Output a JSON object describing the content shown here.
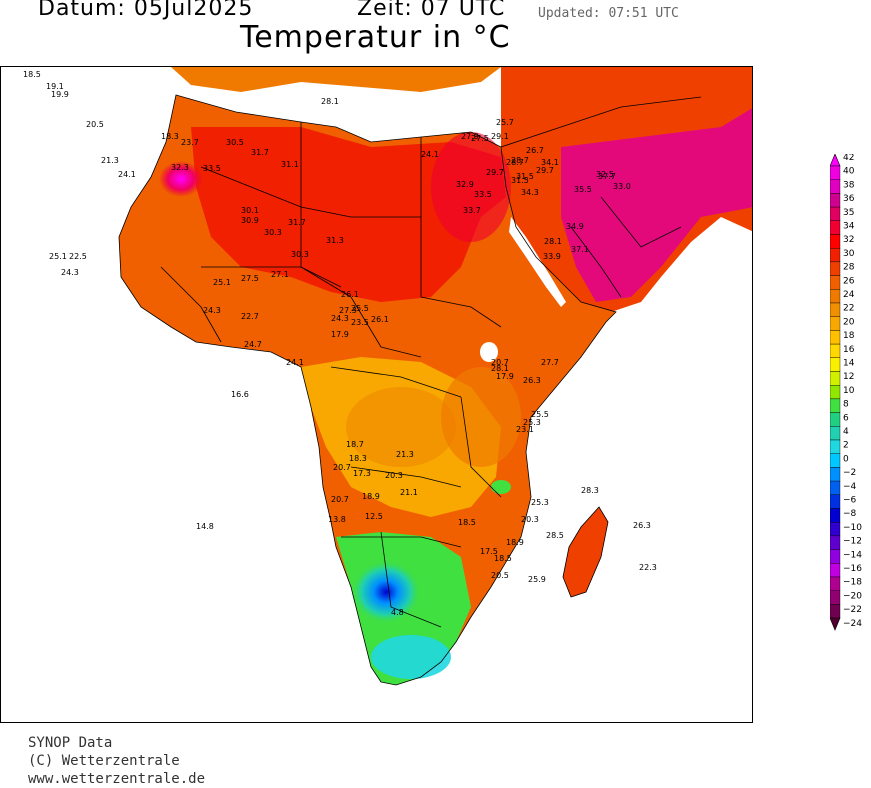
{
  "header": {
    "datum_label": "Datum: 05Jul2025",
    "zeit_label": "Zeit: 07 UTC",
    "updated": "Updated: 07:51 UTC",
    "title": "Temperatur in °C"
  },
  "credits": {
    "line1": "SYNOP Data",
    "line2": "(C) Wetterzentrale",
    "line3": "www.wetterzentrale.de"
  },
  "colorbar": {
    "labels": [
      "42",
      "40",
      "38",
      "36",
      "35",
      "34",
      "32",
      "30",
      "28",
      "26",
      "24",
      "22",
      "20",
      "18",
      "16",
      "14",
      "12",
      "10",
      "8",
      "6",
      "4",
      "2",
      "0",
      "−2",
      "−4",
      "−6",
      "−8",
      "−10",
      "−12",
      "−14",
      "−16",
      "−18",
      "−20",
      "−22",
      "−24"
    ],
    "colors": [
      "#ff00ff",
      "#f000e0",
      "#e000c0",
      "#d00090",
      "#e00060",
      "#f00030",
      "#ff0000",
      "#f02000",
      "#f04000",
      "#f06000",
      "#f07a00",
      "#f09000",
      "#f8a800",
      "#ffc000",
      "#ffd800",
      "#f8f000",
      "#d0f000",
      "#90e800",
      "#40e040",
      "#20d080",
      "#20d0b0",
      "#20d8e0",
      "#00c8ff",
      "#0090ff",
      "#0060f0",
      "#0030e0",
      "#0000d0",
      "#3000d0",
      "#6000d0",
      "#9000e0",
      "#c000e0",
      "#b00090",
      "#900070",
      "#700050",
      "#500030"
    ]
  },
  "stations": [
    {
      "t": "18.5"
    },
    {
      "t": "19.1"
    },
    {
      "t": "19.9"
    },
    {
      "t": "20.5"
    },
    {
      "t": "18.3"
    },
    {
      "t": "23.7"
    },
    {
      "t": "21.3"
    },
    {
      "t": "24.1"
    },
    {
      "t": "32.3"
    },
    {
      "t": "25.1"
    },
    {
      "t": "22.5"
    },
    {
      "t": "24.3"
    },
    {
      "t": "30.5"
    },
    {
      "t": "31.7"
    },
    {
      "t": "31.1"
    },
    {
      "t": "33.5"
    },
    {
      "t": "30.1"
    },
    {
      "t": "30.9"
    },
    {
      "t": "30.3"
    },
    {
      "t": "31.7"
    },
    {
      "t": "30.3"
    },
    {
      "t": "31.3"
    },
    {
      "t": "28.1"
    },
    {
      "t": "27.9"
    },
    {
      "t": "26.7"
    },
    {
      "t": "24.1"
    },
    {
      "t": "27.5"
    },
    {
      "t": "28.7"
    },
    {
      "t": "29.7"
    },
    {
      "t": "32.9"
    },
    {
      "t": "33.7"
    },
    {
      "t": "33.5"
    },
    {
      "t": "31.5"
    },
    {
      "t": "34.3"
    },
    {
      "t": "29.7"
    },
    {
      "t": "34.9"
    },
    {
      "t": "28.1"
    },
    {
      "t": "33.9"
    },
    {
      "t": "37.1"
    },
    {
      "t": "34.1"
    },
    {
      "t": "37.7"
    },
    {
      "t": "35.5"
    },
    {
      "t": "32.5"
    },
    {
      "t": "33.0"
    },
    {
      "t": "27.1"
    },
    {
      "t": "27.5"
    },
    {
      "t": "25.1"
    },
    {
      "t": "24.3"
    },
    {
      "t": "22.7"
    },
    {
      "t": "24.7"
    },
    {
      "t": "26.1"
    },
    {
      "t": "27.3"
    },
    {
      "t": "24.3"
    },
    {
      "t": "25.5"
    },
    {
      "t": "17.9"
    },
    {
      "t": "23.5"
    },
    {
      "t": "26.1"
    },
    {
      "t": "24.1"
    },
    {
      "t": "16.6"
    },
    {
      "t": "28.1"
    },
    {
      "t": "17.9"
    },
    {
      "t": "26.3"
    },
    {
      "t": "20.7"
    },
    {
      "t": "27.7"
    },
    {
      "t": "25.5"
    },
    {
      "t": "25.3"
    },
    {
      "t": "23.1"
    },
    {
      "t": "18.7"
    },
    {
      "t": "18.3"
    },
    {
      "t": "21.3"
    },
    {
      "t": "20.7"
    },
    {
      "t": "17.3"
    },
    {
      "t": "20.3"
    },
    {
      "t": "21.1"
    },
    {
      "t": "20.7"
    },
    {
      "t": "18.9"
    },
    {
      "t": "12.5"
    },
    {
      "t": "13.8"
    },
    {
      "t": "14.8"
    },
    {
      "t": "25.3"
    },
    {
      "t": "20.3"
    },
    {
      "t": "18.5"
    },
    {
      "t": "18.9"
    },
    {
      "t": "17.5"
    },
    {
      "t": "18.5"
    },
    {
      "t": "20.5"
    },
    {
      "t": "25.9"
    },
    {
      "t": "28.3"
    },
    {
      "t": "28.5"
    },
    {
      "t": "26.3"
    },
    {
      "t": "22.3"
    },
    {
      "t": "4.8"
    },
    {
      "t": "25.7"
    },
    {
      "t": "29.1"
    },
    {
      "t": "31.5"
    },
    {
      "t": "28.7"
    }
  ]
}
